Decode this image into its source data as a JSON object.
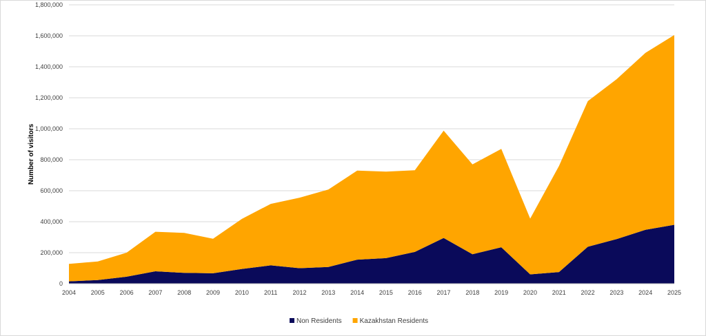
{
  "chart_data": {
    "type": "area",
    "stacked": true,
    "x": [
      "2004",
      "2005",
      "2006",
      "2007",
      "2008",
      "2009",
      "2010",
      "2011",
      "2012",
      "2013",
      "2014",
      "2015",
      "2016",
      "2017",
      "2018",
      "2019",
      "2020",
      "2021",
      "2022",
      "2023",
      "2024",
      "2025"
    ],
    "series": [
      {
        "name": "Non Residents",
        "color": "#0a0a5a",
        "values": [
          15000,
          23000,
          45000,
          80000,
          70000,
          67000,
          95000,
          118000,
          100000,
          108000,
          155000,
          165000,
          205000,
          295000,
          190000,
          235000,
          60000,
          75000,
          238000,
          288000,
          348000,
          380000
        ]
      },
      {
        "name": "Kazakhstan Residents",
        "color": "#ffa500",
        "values": [
          113000,
          120000,
          155000,
          255000,
          258000,
          223000,
          323000,
          397000,
          455000,
          500000,
          575000,
          558000,
          527000,
          693000,
          580000,
          635000,
          360000,
          685000,
          940000,
          1032000,
          1142000,
          1225000
        ]
      }
    ],
    "ylabel": "Number of visitors",
    "ylim": [
      0,
      1800000
    ],
    "yticks": [
      "0",
      "200,000",
      "400,000",
      "600,000",
      "800,000",
      "1,000,000",
      "1,200,000",
      "1,400,000",
      "1,600,000",
      "1,800,000"
    ],
    "grid": true,
    "legend": "bottom"
  }
}
